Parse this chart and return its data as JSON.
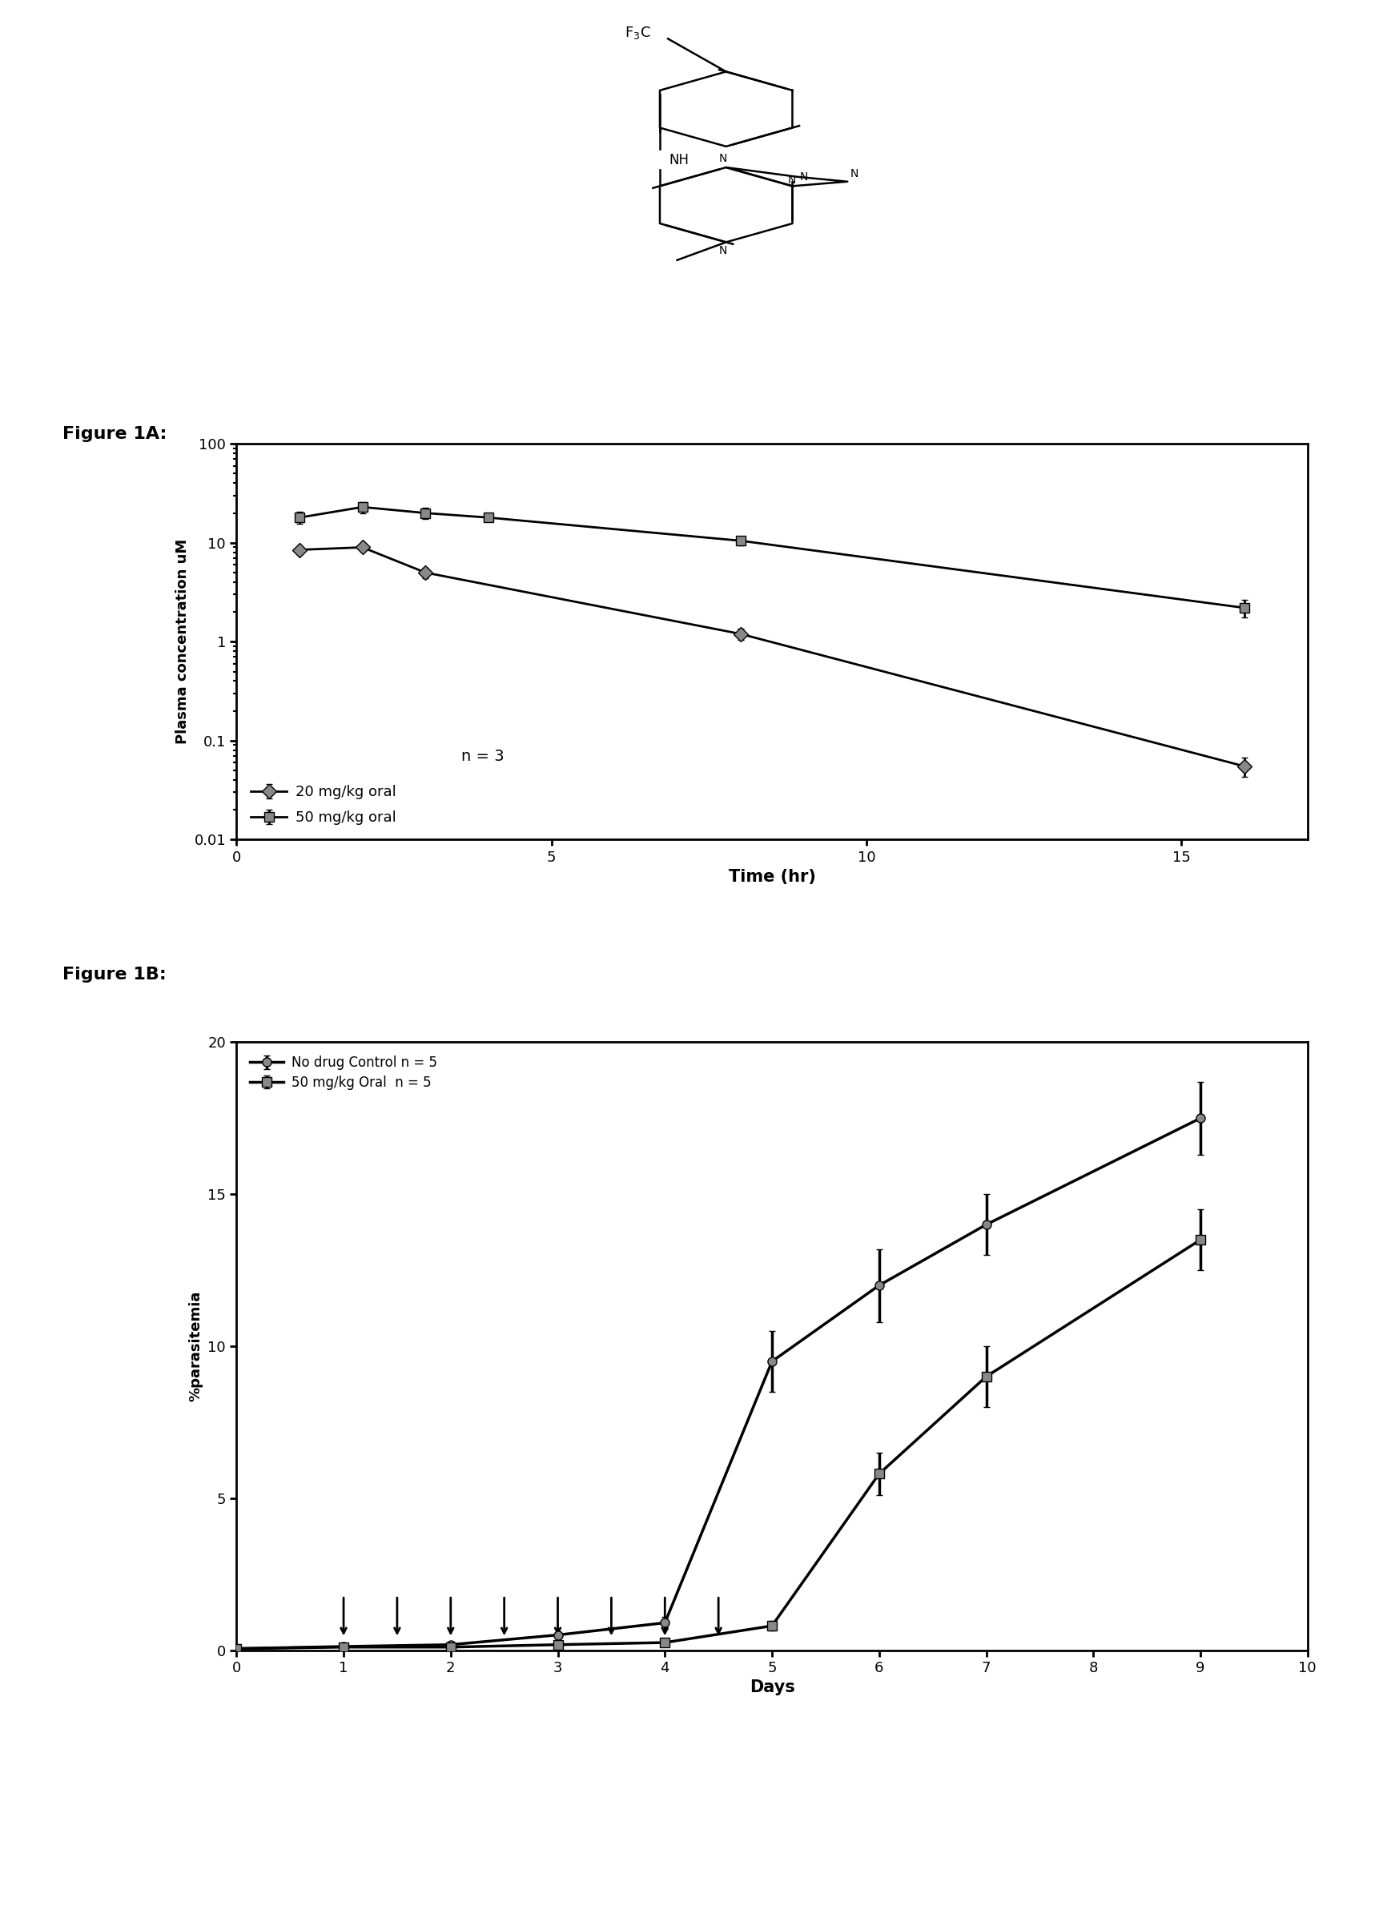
{
  "fig1a_label": "Figure 1A:",
  "fig1b_label": "Figure 1B:",
  "fig1a_xlabel": "Time (hr)",
  "fig1a_ylabel": "Plasma concentration uM",
  "fig1b_xlabel": "Days",
  "fig1b_ylabel": "%parasitemia",
  "fig1a_xlim": [
    0,
    17
  ],
  "fig1a_xticks": [
    0,
    5,
    10,
    15
  ],
  "fig1a_ylim": [
    0.01,
    100
  ],
  "fig1a_yticks": [
    0.01,
    0.1,
    1,
    10,
    100
  ],
  "fig1a_yticklabels": [
    "0.01",
    "0.1",
    "1",
    "10",
    "100"
  ],
  "fig1b_xlim": [
    0,
    10
  ],
  "fig1b_xticks": [
    0,
    1,
    2,
    3,
    4,
    5,
    6,
    7,
    8,
    9,
    10
  ],
  "fig1b_ylim": [
    0,
    20
  ],
  "fig1b_yticks": [
    0,
    5,
    10,
    15,
    20
  ],
  "series20_x": [
    1,
    2,
    3,
    8,
    16
  ],
  "series20_y": [
    8.5,
    9.0,
    5.0,
    1.2,
    0.055
  ],
  "series20_yerr": [
    0.6,
    0.7,
    0.6,
    0.15,
    0.012
  ],
  "series50_x": [
    1,
    2,
    3,
    4,
    8,
    16
  ],
  "series50_y": [
    18,
    23,
    20,
    18,
    10.5,
    2.2
  ],
  "series50_yerr": [
    2.5,
    3.0,
    2.5,
    1.5,
    1.0,
    0.45
  ],
  "legend1a_20": "20 mg/kg oral",
  "legend1a_50": "50 mg/kg oral",
  "n_label": "n = 3",
  "control_x": [
    0,
    1,
    2,
    3,
    4,
    5,
    6,
    7,
    9
  ],
  "control_y": [
    0.05,
    0.12,
    0.18,
    0.5,
    0.9,
    9.5,
    12.0,
    14.0,
    17.5
  ],
  "control_yerr": [
    0.02,
    0.04,
    0.05,
    0.1,
    0.2,
    1.0,
    1.2,
    1.0,
    1.2
  ],
  "drug50_x": [
    0,
    1,
    2,
    3,
    4,
    5,
    6,
    7,
    9
  ],
  "drug50_y": [
    0.05,
    0.1,
    0.1,
    0.18,
    0.25,
    0.8,
    5.8,
    9.0,
    13.5
  ],
  "drug50_yerr": [
    0.02,
    0.03,
    0.03,
    0.04,
    0.06,
    0.15,
    0.7,
    1.0,
    1.0
  ],
  "legend1b_ctrl": "No drug Control n = 5",
  "legend1b_drug": "50 mg/kg Oral  n = 5",
  "arrow_days": [
    1,
    1.5,
    2,
    2.5,
    3,
    3.5,
    4,
    4.5
  ],
  "background_color": "#ffffff",
  "line_color": "#000000"
}
